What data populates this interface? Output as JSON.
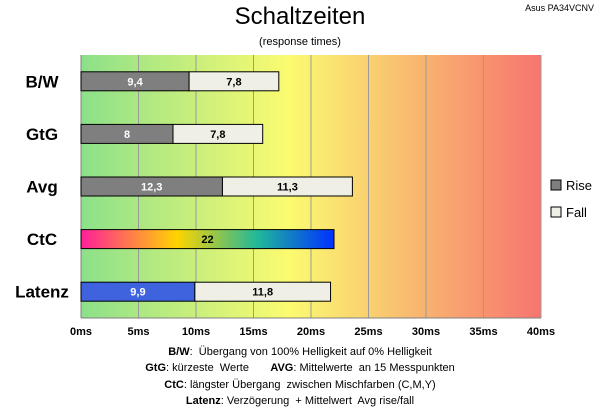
{
  "chart_data": {
    "type": "bar",
    "orientation": "horizontal",
    "stacked": true,
    "title": "Schaltzeiten",
    "subtitle": "(response times)",
    "model": "Asus PA34VCNV",
    "categories": [
      "B/W",
      "GtG",
      "Avg",
      "CtC",
      "Latenz"
    ],
    "series": [
      {
        "name": "Rise",
        "values": [
          9.4,
          8,
          12.3,
          null,
          9.9
        ],
        "labels": [
          "9,4",
          "8",
          "12,3",
          null,
          "9,9"
        ]
      },
      {
        "name": "Fall",
        "values": [
          7.8,
          7.8,
          11.3,
          null,
          11.8
        ],
        "labels": [
          "7,8",
          "7,8",
          "11,3",
          null,
          "11,8"
        ]
      },
      {
        "name": "",
        "values": [
          null,
          null,
          null,
          22,
          null
        ],
        "labels": [
          null,
          null,
          null,
          "22",
          null
        ]
      }
    ],
    "xlim": [
      0,
      40
    ],
    "xticks": [
      0,
      5,
      10,
      15,
      20,
      25,
      30,
      35,
      40
    ],
    "xtick_labels": [
      "0ms",
      "5ms",
      "10ms",
      "15ms",
      "20ms",
      "25ms",
      "30ms",
      "35ms",
      "40ms"
    ],
    "grid": true,
    "legend_position": "right",
    "colors": {
      "rise": "#7f7f7f",
      "fall": "#efefe6",
      "latenz_rise": "#3f63df",
      "background_gradient": [
        "#8ce08a",
        "#fbfb70",
        "#f6756f"
      ],
      "ctc_gradient": [
        "#ff1f9a",
        "#ffd400",
        "#1fb89b",
        "#0030ff"
      ]
    }
  },
  "footnotes": {
    "bw_key": "B/W",
    "bw_text": ":  Übergang von 100% Helligkeit auf 0% Helligkeit",
    "gtg_key": "GtG",
    "gtg_text": ": kürzeste  Werte       ",
    "avg_key": "AVG",
    "avg_text": ": Mittelwerte  an 15 Messpunkten",
    "ctc_key": "CtC",
    "ctc_text": ": längster Übergang  zwischen Mischfarben (C,M,Y)",
    "lat_key": "Latenz",
    "lat_text": ": Verzögerung  + Mittelwert  Avg rise/fall"
  }
}
